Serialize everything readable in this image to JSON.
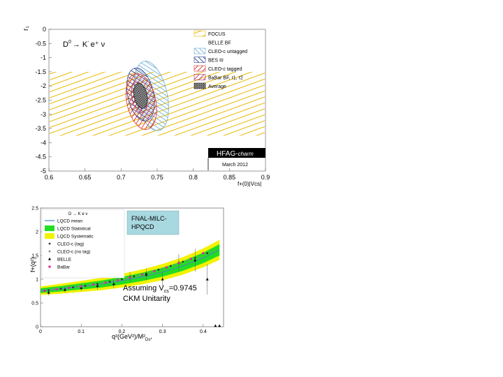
{
  "chart_data": [
    {
      "type": "contour",
      "title_main": "D",
      "title_sup": "0",
      "title_rest": "→ K",
      "title_sup2": "-",
      "title_tail": "e⁺ ν",
      "ylabel": "r₁",
      "xlabel": "f+(0)|Vcs|",
      "xlim": [
        0.6,
        0.9
      ],
      "ylim": [
        -5.0,
        0.0
      ],
      "xticks": [
        "0.6",
        "0.65",
        "0.7",
        "0.75",
        "0.8",
        "0.85",
        "0.9"
      ],
      "yticks": [
        "0",
        "-0.5",
        "-1",
        "-1.5",
        "-2",
        "-2.5",
        "-3",
        "-3.5",
        "-4",
        "-4.5",
        "-5"
      ],
      "legend": [
        {
          "label": "FOCUS",
          "color": "#e8b800",
          "style": "hatch"
        },
        {
          "label": "BELLE BF",
          "color": "#ffffff",
          "style": "none"
        },
        {
          "label": "CLEO-c untagged",
          "color": "#6fb0d8",
          "style": "hatch"
        },
        {
          "label": "BES III",
          "color": "#2b3f8f",
          "style": "hatch"
        },
        {
          "label": "CLEO-c tagged",
          "color": "#d8322c",
          "style": "hatch"
        },
        {
          "label": "BaBar BF, r1, r2",
          "color": "#b0306a",
          "style": "hatch"
        },
        {
          "label": "Average",
          "color": "#222222",
          "style": "cross"
        }
      ],
      "focus_band": [
        -1.5,
        -3.75
      ],
      "ellipses": [
        {
          "name": "CLEO-c untagged",
          "cx": 0.742,
          "cy": -2.35,
          "rx": 0.022,
          "ry": 1.25,
          "color": "#6fb0d8"
        },
        {
          "name": "BES III",
          "cx": 0.727,
          "cy": -2.3,
          "rx": 0.018,
          "ry": 0.95,
          "color": "#2b3f8f"
        },
        {
          "name": "CLEO-c tagged",
          "cx": 0.728,
          "cy": -2.55,
          "rx": 0.02,
          "ry": 1.0,
          "color": "#d8322c"
        },
        {
          "name": "BaBar BF, r1, r2",
          "cx": 0.725,
          "cy": -2.4,
          "rx": 0.01,
          "ry": 0.55,
          "color": "#b0306a"
        },
        {
          "name": "Average",
          "cx": 0.727,
          "cy": -2.35,
          "rx": 0.009,
          "ry": 0.45,
          "color": "#222222"
        }
      ],
      "badge_text": "HFAG-",
      "badge_italic": "charm",
      "badge_date": "March 2012"
    },
    {
      "type": "line",
      "ylabel": "f+(q²)",
      "xlabel": "q²(GeV²)/M²",
      "xlabel_sub": "Ds*",
      "xlim": [
        0.0,
        0.45
      ],
      "ylim": [
        0.0,
        2.5
      ],
      "xticks": [
        "0",
        "0.1",
        "0.2",
        "0.3",
        "0.4"
      ],
      "yticks": [
        "0",
        "0.5",
        "1",
        "1.5",
        "2",
        "2.5"
      ],
      "legend_title": "D → K e ν",
      "legend": [
        {
          "label": "LQCD mean",
          "color": "#4a80c8",
          "style": "line"
        },
        {
          "label": "LQCD Statistical",
          "color": "#22dd22",
          "style": "band"
        },
        {
          "label": "LQCD Systematic",
          "color": "#f2f200",
          "style": "band"
        },
        {
          "label": "CLEO-c (tag)",
          "color": "#333333",
          "style": "dot"
        },
        {
          "label": "CLEO-c (no tag)",
          "color": "#888888",
          "style": "dot"
        },
        {
          "label": "BELLE",
          "color": "#000000",
          "style": "triangle"
        },
        {
          "label": "BaBar",
          "color": "#e0309a",
          "style": "square"
        }
      ],
      "callout_lines": [
        "FNAL-MILC-",
        "HPQCD"
      ],
      "annotation_prefix": "Assuming V",
      "annotation_sub": "cs",
      "annotation_suffix": "=0.9745",
      "annotation_line2": "CKM Unitarity",
      "lqcd_curve": {
        "x": [
          0.0,
          0.05,
          0.1,
          0.15,
          0.2,
          0.25,
          0.3,
          0.35,
          0.4,
          0.44
        ],
        "y": [
          0.76,
          0.8,
          0.85,
          0.9,
          0.97,
          1.05,
          1.15,
          1.28,
          1.45,
          1.62
        ]
      },
      "cleo_tag": {
        "x": [
          0.02,
          0.05,
          0.08,
          0.11,
          0.14,
          0.17,
          0.2,
          0.23,
          0.26,
          0.29,
          0.32,
          0.35,
          0.38,
          0.41
        ],
        "y": [
          0.77,
          0.8,
          0.83,
          0.86,
          0.9,
          0.95,
          1.0,
          1.06,
          1.12,
          1.2,
          1.28,
          1.37,
          1.45,
          1.55
        ]
      },
      "cleo_notag": {
        "x": [
          0.03,
          0.06,
          0.09,
          0.12,
          0.15,
          0.18,
          0.21,
          0.24,
          0.27,
          0.3,
          0.33,
          0.36,
          0.39,
          0.42
        ],
        "y": [
          0.78,
          0.81,
          0.84,
          0.87,
          0.91,
          0.96,
          1.01,
          1.07,
          1.13,
          1.21,
          1.3,
          1.38,
          1.46,
          1.58
        ]
      },
      "belle": {
        "x": [
          0.02,
          0.06,
          0.1,
          0.14,
          0.18,
          0.22,
          0.26,
          0.3,
          0.34,
          0.38,
          0.41,
          0.43,
          0.44
        ],
        "y": [
          0.72,
          0.78,
          0.82,
          0.86,
          0.9,
          1.05,
          1.1,
          1.0,
          1.35,
          1.4,
          1.0,
          0.02,
          0.02
        ],
        "err": [
          0.06,
          0.06,
          0.07,
          0.08,
          0.09,
          0.1,
          0.12,
          0.14,
          0.18,
          0.24,
          0.32,
          0.0,
          0.0
        ]
      },
      "babar": {
        "x": [
          0.01,
          0.04,
          0.07,
          0.1,
          0.13,
          0.16,
          0.19,
          0.22,
          0.25,
          0.28,
          0.31,
          0.34,
          0.37,
          0.4
        ],
        "y": [
          0.76,
          0.79,
          0.82,
          0.85,
          0.89,
          0.93,
          0.98,
          1.04,
          1.1,
          1.17,
          1.25,
          1.34,
          1.43,
          1.55
        ]
      }
    }
  ]
}
